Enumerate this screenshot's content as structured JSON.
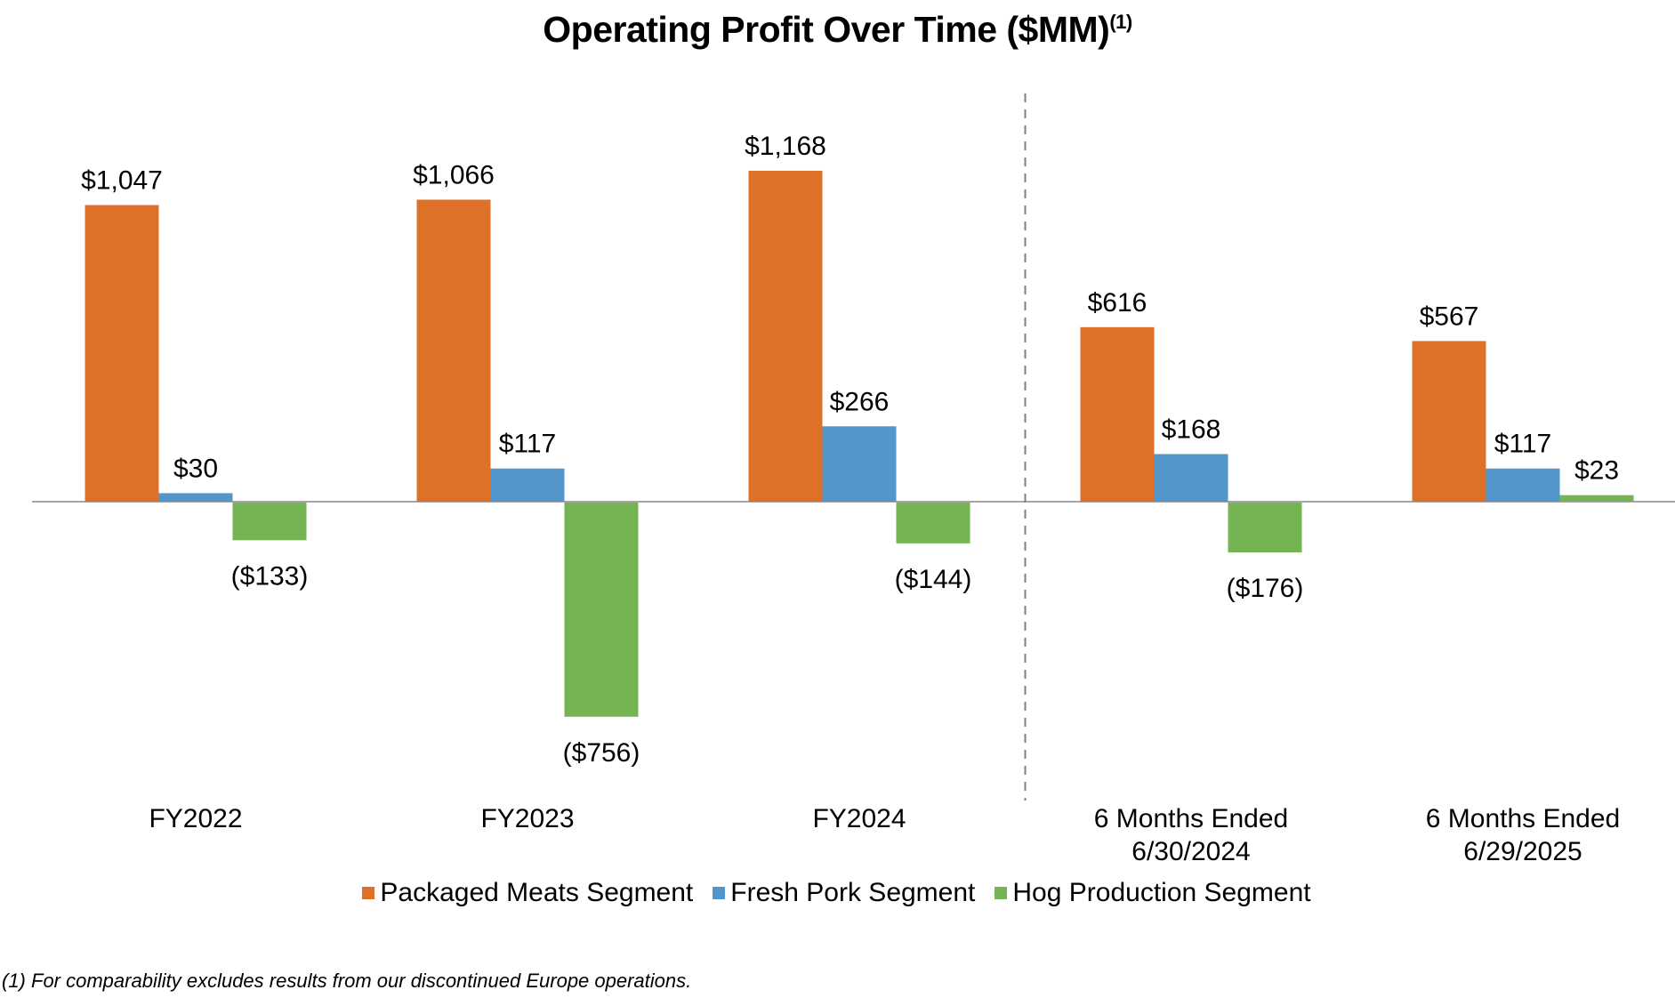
{
  "chart_data": {
    "type": "bar",
    "title": "Operating Profit Over Time ($MM)",
    "title_superscript": "(1)",
    "xlabel": "",
    "ylabel": "",
    "ylim": [
      -900,
      1300
    ],
    "grid": false,
    "legend_position": "bottom",
    "categories": [
      "FY2022",
      "FY2023",
      "FY2024",
      "6 Months Ended\n6/30/2024",
      "6 Months Ended\n6/29/2025"
    ],
    "category_lines": [
      [
        "FY2022"
      ],
      [
        "FY2023"
      ],
      [
        "FY2024"
      ],
      [
        "6 Months Ended",
        "6/30/2024"
      ],
      [
        "6 Months Ended",
        "6/29/2025"
      ]
    ],
    "divider_after_category": 2,
    "series": [
      {
        "name": "Packaged Meats Segment",
        "color": "#DE7128",
        "values": [
          1047,
          1066,
          1168,
          616,
          567
        ],
        "labels": [
          "$1,047",
          "$1,066",
          "$1,168",
          "$616",
          "$567"
        ]
      },
      {
        "name": "Fresh Pork Segment",
        "color": "#5296CC",
        "values": [
          30,
          117,
          266,
          168,
          117
        ],
        "labels": [
          "$30",
          "$117",
          "$266",
          "$168",
          "$117"
        ]
      },
      {
        "name": "Hog Production Segment",
        "color": "#74B452",
        "values": [
          -133,
          -756,
          -144,
          -176,
          23
        ],
        "labels": [
          "($133)",
          "($756)",
          "($144)",
          "($176)",
          "$23"
        ]
      }
    ],
    "footnote": "(1) For comparability excludes results from our discontinued Europe operations."
  }
}
